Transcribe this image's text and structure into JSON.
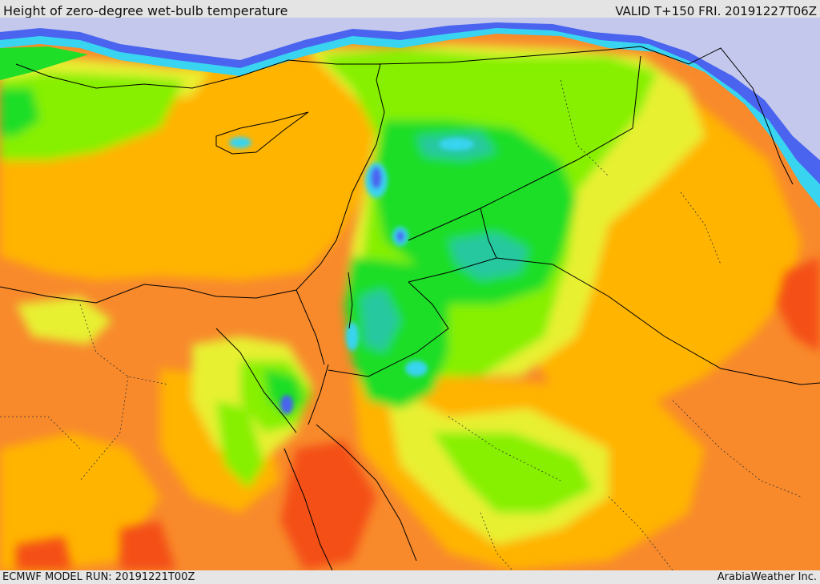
{
  "header": {
    "title": "Height of zero-degree wet-bulb temperature",
    "valid_time": "VALID T+150 FRI. 20191227T06Z"
  },
  "footer": {
    "model_run": "ECMWF MODEL RUN: 20191221T00Z",
    "credit": "ArabiaWeather Inc."
  },
  "map": {
    "region": "Eastern Mediterranean / Middle East",
    "colors": {
      "very_low": "#c4c8ec",
      "low_blue": "#4a64f0",
      "cyan": "#38d4f0",
      "teal": "#28c8a0",
      "green": "#1ede28",
      "lime": "#86f000",
      "yellow": "#e8f030",
      "gold": "#ffb400",
      "orange": "#f88a2c",
      "red_orange": "#f45018",
      "boundaries": "#000000"
    }
  }
}
